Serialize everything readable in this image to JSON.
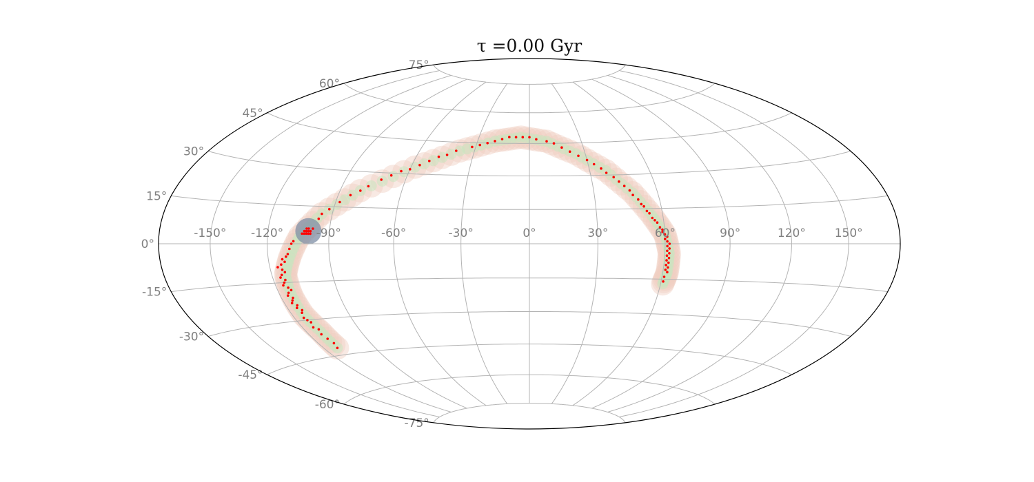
{
  "chart_data": {
    "type": "scatter",
    "projection": "aitoff-hammer",
    "title": "τ =0.00 Gyr",
    "xlabel": "",
    "ylabel": "",
    "grid": true,
    "xlim": [
      -180,
      180
    ],
    "ylim": [
      -90,
      90
    ],
    "longitude_ticks": [
      "-150°",
      "-120°",
      "-90°",
      "-60°",
      "-30°",
      "0°",
      "30°",
      "60°",
      "90°",
      "120°",
      "150°"
    ],
    "latitude_ticks": [
      "-75°",
      "-60°",
      "-45°",
      "-30°",
      "-15°",
      "0°",
      "15°",
      "30°",
      "45°",
      "60°",
      "75°"
    ],
    "longitude_tick_values": [
      -150,
      -120,
      -90,
      -60,
      -30,
      0,
      30,
      60,
      90,
      120,
      150
    ],
    "latitude_tick_values": [
      -75,
      -60,
      -45,
      -30,
      -15,
      0,
      15,
      30,
      45,
      60,
      75
    ],
    "colors": {
      "points": "#ff0000",
      "stream_band": "#f0cfc2",
      "stream_core": "#c8e6c0",
      "progenitor_halo": "#7f8fa6",
      "grid": "#b3b3b3",
      "frame": "#000000",
      "tick_text": "#808080"
    },
    "stream_track": [
      [
        -112,
        -42
      ],
      [
        -112,
        -35
      ],
      [
        -114,
        -28
      ],
      [
        -114,
        -20
      ],
      [
        -113,
        -12
      ],
      [
        -109,
        -5
      ],
      [
        -104,
        3
      ],
      [
        -95,
        12
      ],
      [
        -80,
        22
      ],
      [
        -58,
        33
      ],
      [
        -38,
        41
      ],
      [
        -20,
        46
      ],
      [
        -5,
        48
      ],
      [
        10,
        46
      ],
      [
        25,
        40
      ],
      [
        38,
        32
      ],
      [
        48,
        22
      ],
      [
        55,
        12
      ],
      [
        60,
        4
      ],
      [
        62,
        -4
      ],
      [
        62,
        -12
      ],
      [
        61,
        -17
      ]
    ],
    "progenitor": {
      "lon": -100,
      "lat": 5
    },
    "series": [
      {
        "values": [
          [
            -112,
            -42
          ],
          [
            -111,
            -40
          ],
          [
            -112,
            -38
          ],
          [
            -113,
            -36
          ],
          [
            -112,
            -34
          ],
          [
            -114,
            -33
          ],
          [
            -113,
            -31
          ],
          [
            -114,
            -30
          ],
          [
            -115,
            -29
          ],
          [
            -114,
            -27
          ],
          [
            -113,
            -26
          ],
          [
            -115,
            -25
          ],
          [
            -114,
            -24
          ],
          [
            -116,
            -23
          ],
          [
            -115,
            -22
          ],
          [
            -114,
            -21
          ],
          [
            -116,
            -20
          ],
          [
            -115,
            -19
          ],
          [
            -113,
            -18
          ],
          [
            -114,
            -17
          ],
          [
            -116,
            -16
          ],
          [
            -115,
            -15
          ],
          [
            -114,
            -14
          ],
          [
            -116,
            -13
          ],
          [
            -115,
            -12
          ],
          [
            -113,
            -11
          ],
          [
            -114,
            -10
          ],
          [
            -116,
            -9
          ],
          [
            -114,
            -8
          ],
          [
            -112,
            -7
          ],
          [
            -113,
            -6
          ],
          [
            -111,
            -5
          ],
          [
            -110,
            -4
          ],
          [
            -109,
            -2
          ],
          [
            -108,
            0
          ],
          [
            -107,
            1
          ],
          [
            -103,
            4
          ],
          [
            -102,
            5
          ],
          [
            -101,
            5
          ],
          [
            -100,
            6
          ],
          [
            -101,
            6
          ],
          [
            -100,
            4
          ],
          [
            -99,
            5
          ],
          [
            -102,
            4
          ],
          [
            -98,
            6
          ],
          [
            -100,
            5
          ],
          [
            -99,
            4
          ],
          [
            -101,
            4
          ],
          [
            -96,
            10
          ],
          [
            -95,
            12
          ],
          [
            -92,
            14
          ],
          [
            -88,
            17
          ],
          [
            -84,
            20
          ],
          [
            -80,
            22
          ],
          [
            -77,
            24
          ],
          [
            -72,
            27
          ],
          [
            -68,
            29
          ],
          [
            -64,
            31
          ],
          [
            -60,
            32
          ],
          [
            -56,
            34
          ],
          [
            -52,
            36
          ],
          [
            -48,
            38
          ],
          [
            -44,
            39
          ],
          [
            -40,
            41
          ],
          [
            -32,
            43
          ],
          [
            -28,
            44
          ],
          [
            -24,
            45
          ],
          [
            -20,
            46
          ],
          [
            -16,
            47
          ],
          [
            -12,
            48
          ],
          [
            -8,
            48
          ],
          [
            -4,
            48
          ],
          [
            0,
            48
          ],
          [
            4,
            47
          ],
          [
            10,
            46
          ],
          [
            14,
            45
          ],
          [
            18,
            43
          ],
          [
            22,
            41
          ],
          [
            26,
            39
          ],
          [
            30,
            37
          ],
          [
            33,
            35
          ],
          [
            36,
            33
          ],
          [
            38,
            31
          ],
          [
            41,
            29
          ],
          [
            43,
            27
          ],
          [
            45,
            25
          ],
          [
            47,
            23
          ],
          [
            48,
            21
          ],
          [
            50,
            19
          ],
          [
            51,
            17
          ],
          [
            52,
            16
          ],
          [
            53,
            14
          ],
          [
            54,
            13
          ],
          [
            55,
            11
          ],
          [
            56,
            10
          ],
          [
            57,
            9
          ],
          [
            58,
            7
          ],
          [
            59,
            6
          ],
          [
            59,
            5
          ],
          [
            60,
            4
          ],
          [
            61,
            3
          ],
          [
            60,
            2
          ],
          [
            61,
            1
          ],
          [
            62,
            0
          ],
          [
            61,
            -1
          ],
          [
            62,
            -2
          ],
          [
            61,
            -3
          ],
          [
            62,
            -4
          ],
          [
            61,
            -5
          ],
          [
            62,
            -6
          ],
          [
            61,
            -7
          ],
          [
            62,
            -8
          ],
          [
            61,
            -9
          ],
          [
            62,
            -10
          ],
          [
            61,
            -11
          ],
          [
            62,
            -12
          ],
          [
            61,
            -14
          ],
          [
            61,
            -16
          ]
        ]
      }
    ]
  }
}
